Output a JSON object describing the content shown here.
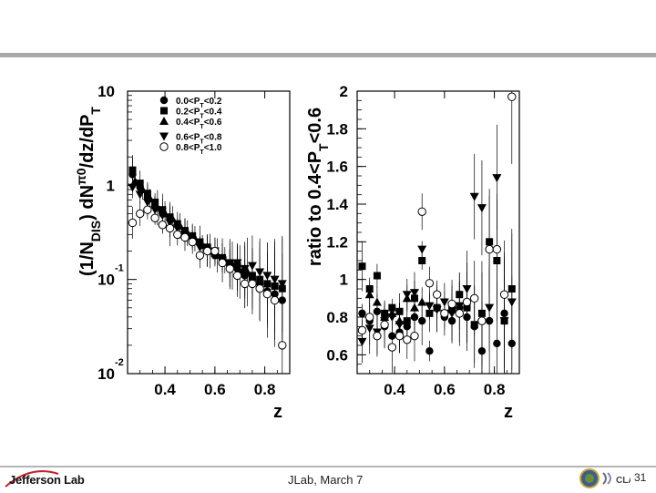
{
  "footer": {
    "center": "JLab,  March 7",
    "logo_text": "Jefferson Lab",
    "page_number": "31",
    "right_logo_text": "CLAS"
  },
  "chart_data": [
    {
      "type": "scatter",
      "xlabel": "z",
      "ylabel": "(1/N_DIS) dN^π0/dz/dP_T",
      "yscale": "log",
      "xlim": [
        0.25,
        0.9
      ],
      "ylim": [
        0.01,
        10
      ],
      "x_ticks": [
        "0.4",
        "0.6",
        "0.8"
      ],
      "y_ticks": [
        {
          "value": 10,
          "mant": "10",
          "exp": ""
        },
        {
          "value": 1,
          "mant": "1",
          "exp": ""
        },
        {
          "value": 0.1,
          "mant": "10",
          "exp": "-1"
        },
        {
          "value": 0.01,
          "mant": "10",
          "exp": "-2"
        }
      ],
      "legend": {
        "placement": "top-right",
        "entries": [
          {
            "marker": "circle-filled",
            "label": "0.0<P_T<0.2"
          },
          {
            "marker": "square-filled",
            "label": "0.2<P_T<0.4"
          },
          {
            "marker": "triangle-up-filled",
            "label": "0.4<P_T<0.6"
          },
          {
            "marker": "triangle-down-filled",
            "label": "0.6<P_T<0.8"
          },
          {
            "marker": "circle-open",
            "label": "0.8<P_T<1.0"
          }
        ]
      },
      "series": [
        {
          "marker": "circle-filled",
          "points": [
            [
              0.27,
              1.3
            ],
            [
              0.3,
              0.95
            ],
            [
              0.33,
              0.75
            ],
            [
              0.36,
              0.6
            ],
            [
              0.39,
              0.5
            ],
            [
              0.42,
              0.45
            ],
            [
              0.45,
              0.38
            ],
            [
              0.48,
              0.32
            ],
            [
              0.51,
              0.28
            ],
            [
              0.54,
              0.24
            ],
            [
              0.57,
              0.2
            ],
            [
              0.6,
              0.18
            ],
            [
              0.63,
              0.16
            ],
            [
              0.66,
              0.14
            ],
            [
              0.69,
              0.13
            ],
            [
              0.72,
              0.11
            ],
            [
              0.75,
              0.1
            ],
            [
              0.78,
              0.09
            ],
            [
              0.81,
              0.075
            ],
            [
              0.84,
              0.07
            ],
            [
              0.87,
              0.06
            ]
          ]
        },
        {
          "marker": "square-filled",
          "points": [
            [
              0.27,
              1.45
            ],
            [
              0.3,
              1.05
            ],
            [
              0.33,
              0.82
            ],
            [
              0.36,
              0.66
            ],
            [
              0.39,
              0.55
            ],
            [
              0.42,
              0.46
            ],
            [
              0.45,
              0.39
            ],
            [
              0.48,
              0.33
            ],
            [
              0.51,
              0.29
            ],
            [
              0.54,
              0.25
            ],
            [
              0.57,
              0.22
            ],
            [
              0.6,
              0.19
            ],
            [
              0.63,
              0.17
            ],
            [
              0.66,
              0.15
            ],
            [
              0.69,
              0.14
            ],
            [
              0.72,
              0.12
            ],
            [
              0.75,
              0.11
            ],
            [
              0.78,
              0.1
            ],
            [
              0.81,
              0.09
            ],
            [
              0.84,
              0.085
            ],
            [
              0.87,
              0.08
            ]
          ]
        },
        {
          "marker": "triangle-up-filled",
          "points": [
            [
              0.28,
              1.1
            ],
            [
              0.31,
              0.9
            ],
            [
              0.34,
              0.72
            ],
            [
              0.37,
              0.58
            ],
            [
              0.4,
              0.5
            ],
            [
              0.43,
              0.44
            ],
            [
              0.46,
              0.37
            ],
            [
              0.49,
              0.31
            ],
            [
              0.52,
              0.27
            ],
            [
              0.55,
              0.23
            ],
            [
              0.58,
              0.2
            ],
            [
              0.61,
              0.18
            ],
            [
              0.64,
              0.16
            ],
            [
              0.67,
              0.14
            ],
            [
              0.7,
              0.12
            ],
            [
              0.73,
              0.12
            ]
          ]
        },
        {
          "marker": "triangle-down-filled",
          "points": [
            [
              0.27,
              0.95
            ],
            [
              0.3,
              0.8
            ],
            [
              0.33,
              0.66
            ],
            [
              0.36,
              0.55
            ],
            [
              0.39,
              0.48
            ],
            [
              0.42,
              0.4
            ],
            [
              0.45,
              0.35
            ],
            [
              0.48,
              0.3
            ],
            [
              0.51,
              0.26
            ],
            [
              0.54,
              0.22
            ],
            [
              0.57,
              0.2
            ],
            [
              0.6,
              0.2
            ],
            [
              0.63,
              0.16
            ],
            [
              0.66,
              0.15
            ],
            [
              0.69,
              0.15
            ],
            [
              0.72,
              0.13
            ],
            [
              0.75,
              0.14
            ],
            [
              0.78,
              0.12
            ],
            [
              0.81,
              0.11
            ],
            [
              0.84,
              0.1
            ],
            [
              0.87,
              0.09
            ]
          ]
        },
        {
          "marker": "circle-open",
          "points": [
            [
              0.27,
              0.4
            ],
            [
              0.3,
              0.5
            ],
            [
              0.33,
              0.55
            ],
            [
              0.36,
              0.45
            ],
            [
              0.39,
              0.38
            ],
            [
              0.42,
              0.35
            ],
            [
              0.45,
              0.3
            ],
            [
              0.48,
              0.28
            ],
            [
              0.51,
              0.25
            ],
            [
              0.54,
              0.18
            ],
            [
              0.57,
              0.2
            ],
            [
              0.6,
              0.2
            ],
            [
              0.63,
              0.15
            ],
            [
              0.66,
              0.13
            ],
            [
              0.69,
              0.11
            ],
            [
              0.72,
              0.09
            ],
            [
              0.75,
              0.09
            ],
            [
              0.78,
              0.08
            ],
            [
              0.81,
              0.07
            ],
            [
              0.84,
              0.06
            ],
            [
              0.87,
              0.02
            ]
          ]
        }
      ]
    },
    {
      "type": "scatter",
      "xlabel": "z",
      "ylabel": "ratio to 0.4<P_T<0.6",
      "yscale": "linear",
      "xlim": [
        0.25,
        0.9
      ],
      "ylim": [
        0.5,
        2.0
      ],
      "x_ticks": [
        "0.4",
        "0.6",
        "0.8"
      ],
      "y_ticks": [
        "2",
        "1.8",
        "1.6",
        "1.4",
        "1.2",
        "1",
        "0.8",
        "0.6"
      ],
      "series": [
        {
          "marker": "circle-filled",
          "points": [
            [
              0.27,
              0.82
            ],
            [
              0.3,
              0.78
            ],
            [
              0.33,
              0.83
            ],
            [
              0.36,
              0.75
            ],
            [
              0.39,
              0.7
            ],
            [
              0.42,
              0.72
            ],
            [
              0.45,
              0.75
            ],
            [
              0.48,
              0.8
            ],
            [
              0.51,
              0.78
            ],
            [
              0.54,
              0.62
            ],
            [
              0.57,
              0.85
            ],
            [
              0.6,
              0.8
            ],
            [
              0.63,
              0.78
            ],
            [
              0.66,
              0.85
            ],
            [
              0.69,
              0.8
            ],
            [
              0.72,
              0.75
            ],
            [
              0.75,
              0.62
            ],
            [
              0.78,
              0.78
            ],
            [
              0.81,
              0.66
            ],
            [
              0.84,
              0.82
            ],
            [
              0.87,
              0.66
            ]
          ]
        },
        {
          "marker": "square-filled",
          "points": [
            [
              0.27,
              1.07
            ],
            [
              0.3,
              0.95
            ],
            [
              0.33,
              1.02
            ],
            [
              0.36,
              0.82
            ],
            [
              0.39,
              0.85
            ],
            [
              0.42,
              0.83
            ],
            [
              0.45,
              0.78
            ],
            [
              0.48,
              0.9
            ],
            [
              0.51,
              1.1
            ],
            [
              0.54,
              0.82
            ],
            [
              0.57,
              0.85
            ],
            [
              0.6,
              0.82
            ],
            [
              0.63,
              0.84
            ],
            [
              0.66,
              0.92
            ],
            [
              0.69,
              0.85
            ],
            [
              0.72,
              0.76
            ],
            [
              0.75,
              0.82
            ],
            [
              0.78,
              1.2
            ],
            [
              0.81,
              1.1
            ],
            [
              0.84,
              0.78
            ],
            [
              0.87,
              0.95
            ]
          ]
        },
        {
          "marker": "triangle-up-filled",
          "points": [
            [
              0.3,
              0.92
            ],
            [
              0.33,
              0.88
            ],
            [
              0.36,
              0.8
            ],
            [
              0.39,
              0.82
            ],
            [
              0.42,
              0.78
            ],
            [
              0.45,
              0.9
            ],
            [
              0.48,
              0.85
            ],
            [
              0.51,
              0.88
            ]
          ]
        },
        {
          "marker": "triangle-down-filled",
          "points": [
            [
              0.27,
              0.67
            ],
            [
              0.3,
              0.74
            ],
            [
              0.33,
              0.72
            ],
            [
              0.36,
              0.78
            ],
            [
              0.39,
              0.8
            ],
            [
              0.42,
              0.76
            ],
            [
              0.45,
              0.92
            ],
            [
              0.48,
              0.93
            ],
            [
              0.51,
              1.16
            ],
            [
              0.54,
              0.86
            ],
            [
              0.57,
              0.84
            ],
            [
              0.6,
              0.88
            ],
            [
              0.63,
              0.82
            ],
            [
              0.66,
              0.86
            ],
            [
              0.69,
              0.95
            ],
            [
              0.72,
              1.44
            ],
            [
              0.75,
              1.38
            ],
            [
              0.78,
              0.85
            ],
            [
              0.81,
              1.54
            ],
            [
              0.84,
              0.78
            ],
            [
              0.87,
              0.88
            ]
          ]
        },
        {
          "marker": "circle-open",
          "points": [
            [
              0.27,
              0.73
            ],
            [
              0.3,
              0.8
            ],
            [
              0.33,
              0.7
            ],
            [
              0.36,
              0.76
            ],
            [
              0.39,
              0.64
            ],
            [
              0.42,
              0.7
            ],
            [
              0.45,
              0.68
            ],
            [
              0.48,
              0.7
            ],
            [
              0.51,
              1.36
            ],
            [
              0.54,
              0.98
            ],
            [
              0.57,
              0.92
            ],
            [
              0.6,
              0.82
            ],
            [
              0.63,
              0.87
            ],
            [
              0.66,
              0.82
            ],
            [
              0.69,
              0.88
            ],
            [
              0.72,
              0.9
            ],
            [
              0.75,
              0.78
            ],
            [
              0.78,
              1.16
            ],
            [
              0.81,
              1.16
            ],
            [
              0.84,
              0.92
            ],
            [
              0.87,
              1.97
            ]
          ]
        }
      ]
    }
  ]
}
